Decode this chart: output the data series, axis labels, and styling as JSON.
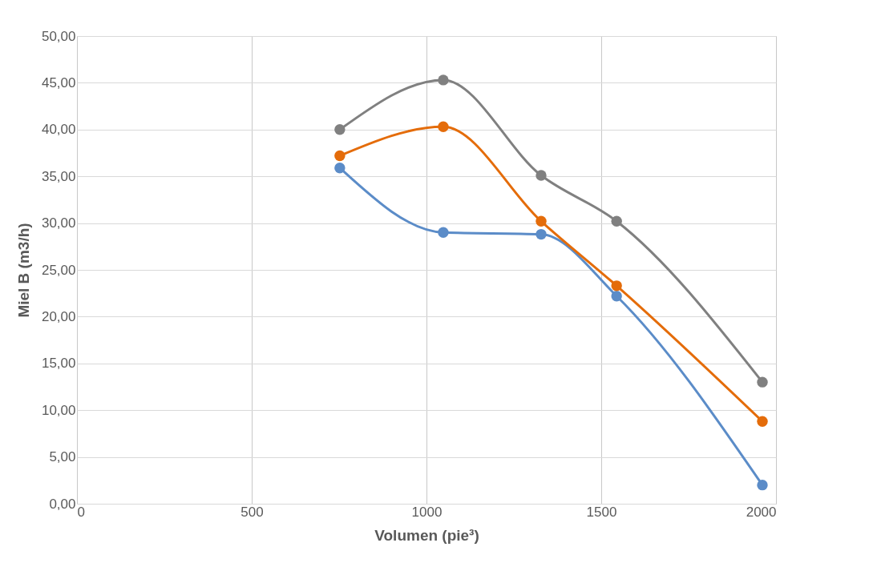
{
  "chart_data": {
    "type": "line",
    "xlabel": "Volumen (pie³)",
    "ylabel": "Miel B (m3/h)",
    "x": [
      752,
      1048,
      1328,
      1544,
      1961
    ],
    "series": [
      {
        "color": "#5b8cc8",
        "values": [
          35.9,
          29.0,
          28.8,
          22.2,
          2.0
        ]
      },
      {
        "color": "#e46c0a",
        "values": [
          37.2,
          40.3,
          30.2,
          23.3,
          8.8
        ]
      },
      {
        "color": "#808080",
        "values": [
          40.0,
          45.3,
          35.1,
          30.2,
          13.0
        ]
      }
    ],
    "xlim": [
      0,
      2000
    ],
    "xticks": [
      0,
      500,
      1000,
      1500,
      2000
    ],
    "ylim": [
      0,
      50
    ],
    "yticks": [
      {
        "value": 0,
        "label": "0,00"
      },
      {
        "value": 5,
        "label": "5,00"
      },
      {
        "value": 10,
        "label": "10,00"
      },
      {
        "value": 15,
        "label": "15,00"
      },
      {
        "value": 20,
        "label": "20,00"
      },
      {
        "value": 25,
        "label": "25,00"
      },
      {
        "value": 30,
        "label": "30,00"
      },
      {
        "value": 35,
        "label": "35,00"
      },
      {
        "value": 40,
        "label": "40,00"
      },
      {
        "value": 45,
        "label": "45,00"
      },
      {
        "value": 50,
        "label": "50,00"
      }
    ],
    "grid": true,
    "marker": "circle",
    "line_style": "solid"
  }
}
